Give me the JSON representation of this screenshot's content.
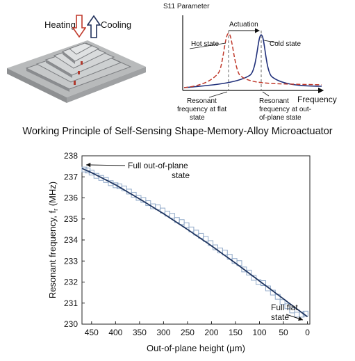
{
  "actuator": {
    "heating_label": "Heating",
    "cooling_label": "Cooling",
    "heating_color": "#c0392b",
    "cooling_color": "#1f2f5a"
  },
  "s11": {
    "title": "S11 Parameter",
    "xlabel": "Frequency",
    "actuation_label": "Actuation",
    "hot_label": "Hot state",
    "cold_label": "Cold state",
    "flat_note_1": "Resonant",
    "flat_note_2": "frequency at flat",
    "flat_note_3": "state",
    "oop_note_1": "Resonant",
    "oop_note_2": "frequency at out-",
    "oop_note_3": "of-plane state",
    "hot_color": "#c0392b",
    "cold_color": "#1f2f7a"
  },
  "caption": "Working Principle of Self-Sensing Shape-Memory-Alloy  Microactuator",
  "chart_data": {
    "type": "scatter",
    "xlabel": "Out-of-plane height (μm)",
    "ylabel_main": "Resonant frequency, f",
    "ylabel_sub": "r",
    "ylabel_unit": " (MHz)",
    "xlim": [
      470,
      -5
    ],
    "ylim": [
      230,
      238
    ],
    "xticks": [
      450,
      400,
      350,
      300,
      250,
      200,
      150,
      100,
      50,
      0
    ],
    "yticks": [
      230,
      231,
      232,
      233,
      234,
      235,
      236,
      237,
      238
    ],
    "annotation_top_1": "Full out-of-plane",
    "annotation_top_2": "state",
    "annotation_bottom_1": "Full flat",
    "annotation_bottom_2": "state",
    "marker_color": "#8fa8c8",
    "fit_color": "#1f3560",
    "series": [
      {
        "values_x": [
          465,
          458,
          450,
          440,
          430,
          420,
          410,
          400,
          392,
          382,
          372,
          362,
          352,
          342,
          332,
          322,
          312,
          302,
          292,
          282,
          272,
          262,
          252,
          242,
          232,
          222,
          212,
          202,
          192,
          182,
          172,
          162,
          152,
          142,
          132,
          122,
          112,
          102,
          92,
          82,
          72,
          62,
          52,
          42,
          32,
          22,
          12,
          4
        ],
        "values_y": [
          237.35,
          237.3,
          237.2,
          237.05,
          236.95,
          236.85,
          236.7,
          236.6,
          236.55,
          236.45,
          236.3,
          236.15,
          236.0,
          235.9,
          235.75,
          235.6,
          235.55,
          235.4,
          235.25,
          235.15,
          234.95,
          234.85,
          234.7,
          234.5,
          234.35,
          234.2,
          234.05,
          233.85,
          233.65,
          233.5,
          233.4,
          233.2,
          233.0,
          232.9,
          232.6,
          232.45,
          232.2,
          232.0,
          231.95,
          231.7,
          231.5,
          231.3,
          231.05,
          230.85,
          230.65,
          230.45,
          230.45,
          230.5
        ]
      }
    ],
    "fit": {
      "x": [
        470,
        450,
        400,
        350,
        300,
        250,
        200,
        150,
        100,
        50,
        0
      ],
      "y": [
        237.4,
        237.2,
        236.62,
        235.95,
        235.25,
        234.5,
        233.72,
        232.9,
        232.05,
        231.2,
        230.35
      ]
    }
  }
}
